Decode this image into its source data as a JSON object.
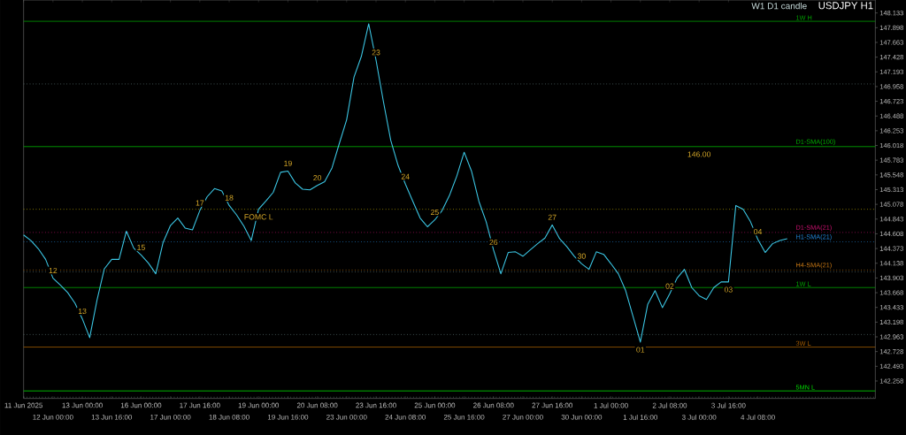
{
  "chart_data": {
    "type": "line",
    "title": "USDJPY H1",
    "subtitle": "W1 D1 candle",
    "color": "#3cc8e6",
    "categories": [
      "11 Jun 2025",
      null,
      null,
      null,
      "12 Jun 00:00",
      null,
      null,
      null,
      "13 Jun 00:00",
      null,
      null,
      null,
      "13 Jun 16:00",
      null,
      null,
      null,
      "16 Jun 00:00",
      null,
      null,
      null,
      "17 Jun 00:00",
      null,
      null,
      null,
      "17 Jun 16:00",
      null,
      null,
      null,
      "18 Jun 08:00",
      null,
      null,
      null,
      "19 Jun 00:00",
      null,
      null,
      null,
      "19 Jun 16:00",
      null,
      null,
      null,
      "20 Jun 08:00",
      null,
      null,
      null,
      "23 Jun 00:00",
      null,
      null,
      null,
      "23 Jun 16:00",
      null,
      null,
      null,
      "24 Jun 08:00",
      null,
      null,
      null,
      "25 Jun 00:00",
      null,
      null,
      null,
      "25 Jun 16:00",
      null,
      null,
      null,
      "26 Jun 08:00",
      null,
      null,
      null,
      "27 Jun 00:00",
      null,
      null,
      null,
      "27 Jun 16:00",
      null,
      null,
      null,
      "30 Jun 00:00",
      null,
      null,
      null,
      "1 Jul 00:00",
      null,
      null,
      null,
      "1 Jul 16:00",
      null,
      null,
      null,
      "2 Jul 08:00",
      null,
      null,
      null,
      "3 Jul 00:00",
      null,
      null,
      null,
      "3 Jul 16:00",
      null,
      null,
      null,
      "4 Jul 08:00",
      null,
      null,
      null,
      null,
      null,
      null,
      null,
      null,
      null,
      null,
      null,
      null,
      null,
      null,
      null,
      null
    ],
    "values": [
      144.59,
      144.5,
      144.37,
      144.2,
      143.9,
      143.79,
      143.67,
      143.5,
      143.25,
      142.95,
      143.55,
      144.05,
      144.2,
      144.2,
      144.65,
      144.38,
      144.27,
      144.14,
      143.97,
      144.47,
      144.74,
      144.86,
      144.7,
      144.67,
      144.98,
      145.2,
      145.33,
      145.29,
      145.06,
      144.91,
      144.73,
      144.5,
      145.0,
      145.13,
      145.27,
      145.59,
      145.61,
      145.42,
      145.32,
      145.31,
      145.38,
      145.44,
      145.66,
      146.05,
      146.43,
      147.11,
      147.44,
      147.96,
      147.38,
      146.72,
      146.1,
      145.7,
      145.4,
      145.13,
      144.86,
      144.72,
      144.83,
      144.98,
      145.22,
      145.53,
      145.91,
      145.61,
      145.13,
      144.8,
      144.35,
      143.97,
      144.31,
      144.32,
      144.25,
      144.35,
      144.45,
      144.54,
      144.75,
      144.53,
      144.4,
      144.25,
      144.13,
      144.04,
      144.32,
      144.28,
      144.13,
      143.97,
      143.7,
      143.29,
      142.88,
      143.48,
      143.7,
      143.43,
      143.65,
      143.9,
      144.04,
      143.75,
      143.62,
      143.56,
      143.75,
      143.84,
      143.84,
      145.06,
      145.0,
      144.8,
      144.52,
      144.31,
      144.45,
      144.5,
      144.53,
      null,
      null,
      null,
      null,
      null,
      null,
      null,
      null,
      null,
      null,
      null,
      null
    ],
    "ylim": [
      141.98,
      148.34
    ],
    "yticks": [
      148.133,
      147.898,
      147.663,
      147.428,
      147.193,
      146.958,
      146.723,
      146.488,
      146.253,
      146.018,
      145.783,
      145.548,
      145.313,
      145.078,
      144.843,
      144.608,
      144.373,
      144.138,
      143.903,
      143.668,
      143.433,
      143.198,
      142.963,
      142.728,
      142.493,
      142.258
    ],
    "ref_lines": [
      {
        "axis": "y",
        "value": 148.0,
        "label": "1W H",
        "color": "#00a000",
        "line_style": "solid"
      },
      {
        "axis": "y",
        "value": 146.0,
        "label": "D1-SMA(100)",
        "color": "#00b400",
        "line_style": "solid"
      },
      {
        "axis": "y",
        "value": 144.63,
        "label": "D1-SMA(21)",
        "color": "#c8106e",
        "line_style": "dotted"
      },
      {
        "axis": "y",
        "value": 144.48,
        "label": "H1-SMA(21)",
        "color": "#2080d0",
        "line_style": "dotted"
      },
      {
        "axis": "y",
        "value": 144.03,
        "label": "H4-SMA(21)",
        "color": "#c87814",
        "line_style": "dotted"
      },
      {
        "axis": "y",
        "value": 143.75,
        "label": "1W L",
        "color": "#00a000",
        "line_style": "solid"
      },
      {
        "axis": "y",
        "value": 142.8,
        "label": "3W L",
        "color": "#a05a00",
        "line_style": "solid"
      },
      {
        "axis": "y",
        "value": 142.1,
        "label": "5MN L",
        "color": "#00e000",
        "line_style": "solid"
      },
      {
        "axis": "y",
        "value": 147.0,
        "color": "#607878",
        "line_style": "dotted"
      },
      {
        "axis": "y",
        "value": 145.0,
        "color": "#c8b400",
        "line_style": "dotted"
      },
      {
        "axis": "y",
        "value": 144.0,
        "color": "#607878",
        "line_style": "dotted"
      },
      {
        "axis": "y",
        "value": 143.0,
        "color": "#607878",
        "line_style": "dotted"
      },
      {
        "axis": "y",
        "value": 142.0,
        "color": "#607878",
        "line_style": "dotted"
      }
    ],
    "annotations": [
      {
        "text": "12",
        "x": "12 Jun 00:00",
        "y": 143.9
      },
      {
        "text": "13",
        "x": "13 Jun 00:00",
        "y": 143.25
      },
      {
        "text": "15",
        "x": "16 Jun 00:00",
        "y": 144.27
      },
      {
        "text": "17",
        "x": "17 Jun 16:00",
        "y": 144.98
      },
      {
        "text": "18",
        "x": "18 Jun 08:00",
        "y": 145.06
      },
      {
        "text": "19",
        "x": "19 Jun 16:00",
        "y": 145.61
      },
      {
        "text": "20",
        "x": "20 Jun 08:00",
        "y": 145.38
      },
      {
        "text": "23",
        "x": "23 Jun 16:00",
        "y": 147.38
      },
      {
        "text": "24",
        "x": "24 Jun 08:00",
        "y": 145.4
      },
      {
        "text": "25",
        "x": "25 Jun 00:00",
        "y": 144.83
      },
      {
        "text": "26",
        "x": "26 Jun 08:00",
        "y": 144.35
      },
      {
        "text": "27",
        "x": "27 Jun 16:00",
        "y": 144.75
      },
      {
        "text": "30",
        "x": "30 Jun 00:00",
        "y": 144.13
      },
      {
        "text": "01",
        "x": "1 Jul 16:00",
        "y": 142.88
      },
      {
        "text": "02",
        "x": "2 Jul 08:00",
        "y": 143.65
      },
      {
        "text": "03",
        "x": "3 Jul 16:00",
        "y": 143.84
      },
      {
        "text": "04",
        "x": "4 Jul 08:00",
        "y": 144.52
      },
      {
        "text": "FOMC L",
        "x": "19 Jun 00:00",
        "y": 145.0
      },
      {
        "text": "146.00",
        "x": "3 Jul 00:00",
        "y": 146.0
      }
    ]
  }
}
